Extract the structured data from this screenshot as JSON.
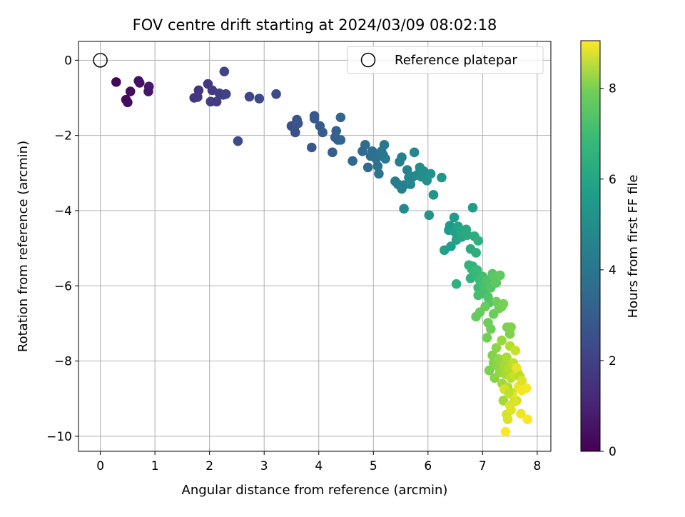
{
  "chart_data": {
    "type": "scatter",
    "title": "FOV centre drift starting at 2024/03/09 08:02:18",
    "xlabel": "Angular distance from reference (arcmin)",
    "ylabel": "Rotation from reference (arcmin)",
    "xlim": [
      -0.4,
      8.25
    ],
    "ylim": [
      -10.4,
      0.5
    ],
    "x_ticks": [
      0,
      1,
      2,
      3,
      4,
      5,
      6,
      7,
      8
    ],
    "y_ticks": [
      0,
      -2,
      -4,
      -6,
      -8,
      -10
    ],
    "grid": true,
    "legend": {
      "placement": "top-right",
      "entries": [
        "Reference platepar"
      ]
    },
    "reference": {
      "x": 0,
      "y": 0
    },
    "colorbar": {
      "label": "Hours from first FF file",
      "min": 0,
      "max": 9.05,
      "ticks": [
        0,
        2,
        4,
        6,
        8
      ],
      "colormap": "viridis"
    },
    "points": [
      [
        0.29,
        -0.58,
        0.15
      ],
      [
        0.47,
        -1.05,
        0.25
      ],
      [
        0.5,
        -1.12,
        0.3
      ],
      [
        0.55,
        -0.83,
        0.35
      ],
      [
        0.7,
        -0.55,
        0.4
      ],
      [
        0.72,
        -0.6,
        0.45
      ],
      [
        0.88,
        -0.83,
        0.55
      ],
      [
        0.89,
        -0.7,
        0.6
      ],
      [
        1.72,
        -1.0,
        1.35
      ],
      [
        1.8,
        -0.8,
        1.4
      ],
      [
        1.78,
        -0.98,
        1.45
      ],
      [
        1.97,
        -0.63,
        1.5
      ],
      [
        2.05,
        -0.8,
        1.55
      ],
      [
        2.02,
        -1.1,
        1.6
      ],
      [
        2.13,
        -1.1,
        1.65
      ],
      [
        2.18,
        -0.88,
        1.7
      ],
      [
        2.25,
        -0.92,
        1.75
      ],
      [
        2.3,
        -0.9,
        1.8
      ],
      [
        2.27,
        -0.3,
        1.85
      ],
      [
        2.52,
        -2.15,
        2.1
      ],
      [
        2.73,
        -0.97,
        1.95
      ],
      [
        2.91,
        -1.02,
        2.0
      ],
      [
        3.22,
        -0.9,
        2.05
      ],
      [
        3.5,
        -1.75,
        2.2
      ],
      [
        3.55,
        -1.8,
        2.25
      ],
      [
        3.57,
        -1.92,
        2.3
      ],
      [
        3.6,
        -1.58,
        2.35
      ],
      [
        3.62,
        -1.68,
        2.4
      ],
      [
        3.87,
        -2.32,
        2.5
      ],
      [
        3.92,
        -1.48,
        2.45
      ],
      [
        3.92,
        -1.55,
        2.55
      ],
      [
        4.02,
        -1.75,
        2.6
      ],
      [
        4.07,
        -1.92,
        2.65
      ],
      [
        4.25,
        -2.45,
        2.7
      ],
      [
        4.3,
        -2.05,
        2.75
      ],
      [
        4.32,
        -1.88,
        2.8
      ],
      [
        4.35,
        -2.12,
        2.85
      ],
      [
        4.4,
        -2.12,
        2.9
      ],
      [
        4.4,
        -1.52,
        2.95
      ],
      [
        4.62,
        -2.68,
        3.05
      ],
      [
        4.8,
        -2.42,
        3.1
      ],
      [
        4.85,
        -2.25,
        3.15
      ],
      [
        4.9,
        -2.85,
        3.2
      ],
      [
        4.95,
        -2.55,
        3.25
      ],
      [
        4.98,
        -2.42,
        3.3
      ],
      [
        5.02,
        -2.5,
        3.35
      ],
      [
        5.05,
        -2.62,
        3.4
      ],
      [
        5.08,
        -2.82,
        3.45
      ],
      [
        5.1,
        -3.02,
        3.5
      ],
      [
        5.15,
        -2.42,
        3.55
      ],
      [
        5.18,
        -2.52,
        3.6
      ],
      [
        5.2,
        -2.25,
        3.65
      ],
      [
        5.22,
        -2.62,
        3.7
      ],
      [
        5.4,
        -3.22,
        3.75
      ],
      [
        5.45,
        -3.3,
        3.8
      ],
      [
        5.48,
        -2.7,
        3.85
      ],
      [
        5.52,
        -3.42,
        3.9
      ],
      [
        5.52,
        -2.58,
        3.95
      ],
      [
        5.56,
        -3.95,
        4.3
      ],
      [
        5.56,
        -3.32,
        4.0
      ],
      [
        5.62,
        -2.92,
        4.05
      ],
      [
        5.65,
        -3.12,
        4.1
      ],
      [
        5.68,
        -3.3,
        4.15
      ],
      [
        5.72,
        -3.1,
        4.2
      ],
      [
        5.75,
        -2.45,
        4.25
      ],
      [
        5.8,
        -3.05,
        4.35
      ],
      [
        5.85,
        -2.85,
        4.4
      ],
      [
        5.88,
        -3.1,
        4.45
      ],
      [
        5.92,
        -2.95,
        4.5
      ],
      [
        5.98,
        -3.2,
        4.55
      ],
      [
        6.02,
        -4.12,
        4.65
      ],
      [
        6.05,
        -3.02,
        4.6
      ],
      [
        6.1,
        -3.58,
        4.7
      ],
      [
        6.25,
        -3.12,
        4.75
      ],
      [
        6.3,
        -5.05,
        5.15
      ],
      [
        6.38,
        -4.52,
        5.0
      ],
      [
        6.4,
        -4.4,
        4.9
      ],
      [
        6.42,
        -4.95,
        5.05
      ],
      [
        6.48,
        -4.18,
        4.95
      ],
      [
        6.5,
        -4.58,
        5.1
      ],
      [
        6.52,
        -4.78,
        5.2
      ],
      [
        6.55,
        -4.42,
        5.25
      ],
      [
        6.58,
        -4.52,
        5.3
      ],
      [
        6.62,
        -4.7,
        5.35
      ],
      [
        6.65,
        -4.58,
        5.4
      ],
      [
        6.7,
        -4.5,
        5.45
      ],
      [
        6.72,
        -4.65,
        5.5
      ],
      [
        6.78,
        -5.02,
        5.55
      ],
      [
        6.82,
        -3.92,
        5.0
      ],
      [
        6.85,
        -4.68,
        5.6
      ],
      [
        6.88,
        -5.12,
        5.65
      ],
      [
        6.92,
        -4.8,
        5.7
      ],
      [
        6.52,
        -5.95,
        5.75
      ],
      [
        6.75,
        -5.45,
        5.8
      ],
      [
        6.78,
        -5.8,
        5.85
      ],
      [
        6.8,
        -5.55,
        5.9
      ],
      [
        6.82,
        -5.48,
        5.95
      ],
      [
        6.85,
        -5.65,
        6.0
      ],
      [
        6.88,
        -5.72,
        6.05
      ],
      [
        6.9,
        -5.58,
        6.1
      ],
      [
        6.92,
        -6.05,
        6.15
      ],
      [
        6.95,
        -5.85,
        6.2
      ],
      [
        6.98,
        -6.2,
        6.25
      ],
      [
        7.0,
        -5.75,
        6.3
      ],
      [
        7.02,
        -5.95,
        6.35
      ],
      [
        7.05,
        -6.1,
        6.4
      ],
      [
        7.08,
        -5.85,
        6.45
      ],
      [
        7.1,
        -6.3,
        6.5
      ],
      [
        7.12,
        -6.45,
        6.55
      ],
      [
        7.15,
        -6.05,
        6.6
      ],
      [
        7.18,
        -5.68,
        6.65
      ],
      [
        7.2,
        -5.75,
        6.7
      ],
      [
        7.25,
        -5.92,
        6.75
      ],
      [
        7.32,
        -5.72,
        6.8
      ],
      [
        6.92,
        -6.25,
        6.35
      ],
      [
        6.88,
        -6.82,
        6.85
      ],
      [
        6.95,
        -6.7,
        6.9
      ],
      [
        7.05,
        -6.55,
        6.95
      ],
      [
        7.1,
        -6.98,
        7.0
      ],
      [
        7.15,
        -7.15,
        7.05
      ],
      [
        7.08,
        -7.38,
        7.1
      ],
      [
        7.2,
        -6.75,
        6.95
      ],
      [
        7.25,
        -6.42,
        7.0
      ],
      [
        7.3,
        -6.6,
        7.05
      ],
      [
        7.35,
        -6.55,
        7.1
      ],
      [
        7.38,
        -6.48,
        7.15
      ],
      [
        7.45,
        -7.1,
        7.2
      ],
      [
        7.5,
        -7.28,
        7.25
      ],
      [
        7.52,
        -7.1,
        7.3
      ],
      [
        7.12,
        -8.25,
        7.2
      ],
      [
        7.18,
        -7.85,
        7.3
      ],
      [
        7.2,
        -8.05,
        7.35
      ],
      [
        7.22,
        -8.45,
        7.4
      ],
      [
        7.25,
        -7.65,
        7.45
      ],
      [
        7.28,
        -8.15,
        7.5
      ],
      [
        7.3,
        -7.95,
        7.55
      ],
      [
        7.32,
        -8.3,
        7.6
      ],
      [
        7.35,
        -7.45,
        7.65
      ],
      [
        7.36,
        -8.6,
        7.7
      ],
      [
        7.38,
        -9.05,
        7.75
      ],
      [
        7.4,
        -8.1,
        7.8
      ],
      [
        7.42,
        -8.35,
        7.85
      ],
      [
        7.44,
        -7.9,
        7.9
      ],
      [
        7.46,
        -8.7,
        7.95
      ],
      [
        7.48,
        -8.2,
        8.0
      ],
      [
        7.5,
        -7.6,
        8.05
      ],
      [
        7.52,
        -8.45,
        8.1
      ],
      [
        7.54,
        -8.85,
        8.15
      ],
      [
        7.56,
        -8.05,
        8.2
      ],
      [
        7.58,
        -8.38,
        8.25
      ],
      [
        7.6,
        -7.72,
        8.3
      ],
      [
        7.62,
        -9.05,
        8.35
      ],
      [
        7.64,
        -8.3,
        8.4
      ],
      [
        7.4,
        -8.75,
        8.45
      ],
      [
        7.44,
        -9.42,
        8.5
      ],
      [
        7.46,
        -9.55,
        8.55
      ],
      [
        7.5,
        -9.18,
        8.6
      ],
      [
        7.52,
        -9.3,
        8.65
      ],
      [
        7.55,
        -8.92,
        8.7
      ],
      [
        7.62,
        -8.18,
        8.75
      ],
      [
        7.66,
        -8.68,
        8.8
      ],
      [
        7.7,
        -9.4,
        8.85
      ],
      [
        7.72,
        -8.78,
        8.9
      ],
      [
        7.8,
        -8.72,
        8.95
      ],
      [
        7.82,
        -9.55,
        9.0
      ],
      [
        7.42,
        -9.88,
        9.02
      ],
      [
        7.48,
        -8.85,
        8.2
      ],
      [
        7.58,
        -9.08,
        8.55
      ],
      [
        7.68,
        -8.4,
        8.15
      ],
      [
        7.72,
        -8.52,
        8.6
      ]
    ]
  }
}
